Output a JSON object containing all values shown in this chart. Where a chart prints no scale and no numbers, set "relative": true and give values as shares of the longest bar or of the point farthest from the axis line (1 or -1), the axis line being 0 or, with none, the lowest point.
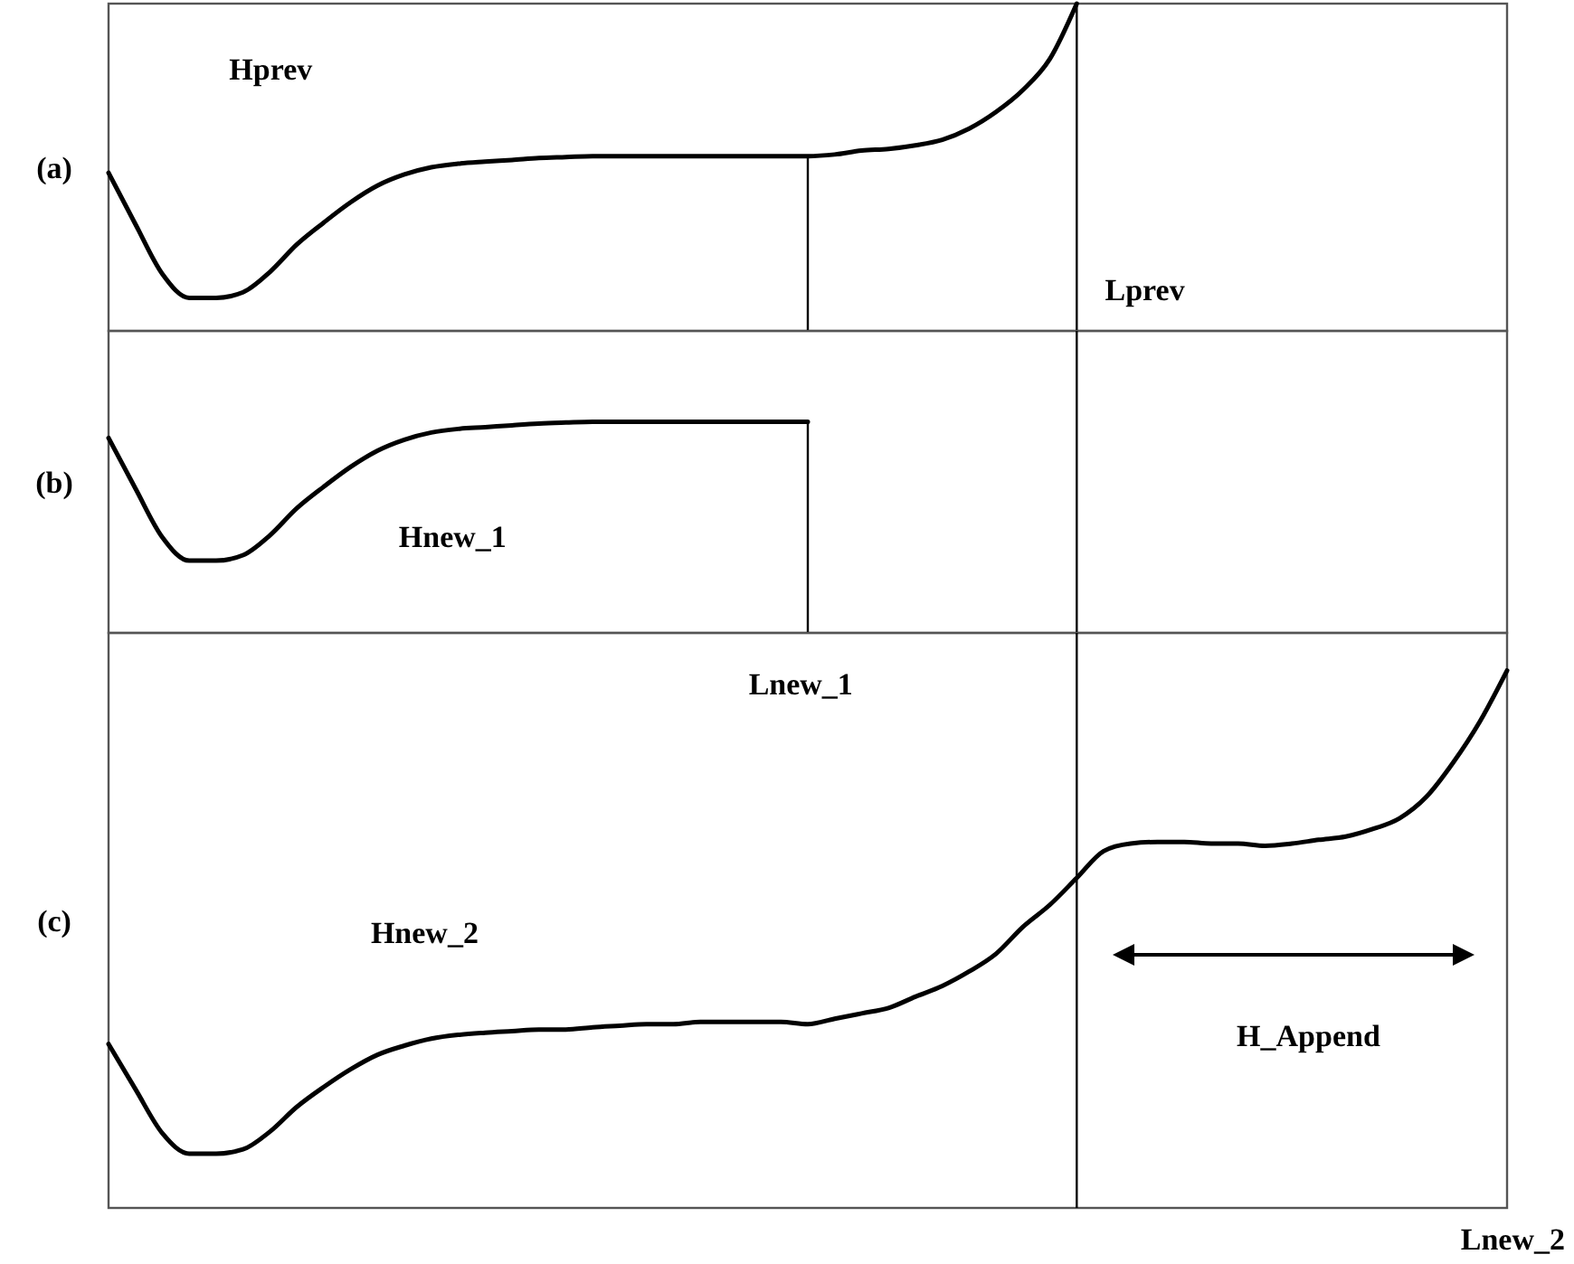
{
  "chart_data": [
    {
      "type": "line",
      "title": "(a)",
      "relative": true,
      "marker": "none",
      "line_style": "solid",
      "categories": [
        null,
        null,
        null,
        null,
        null,
        null,
        null,
        null,
        null,
        null,
        null,
        null,
        null,
        null,
        null,
        null,
        null,
        null,
        null,
        null,
        null,
        null,
        null,
        null,
        null,
        null,
        null,
        null,
        null,
        null,
        null,
        null,
        null,
        null,
        null,
        null,
        null,
        null,
        null,
        null,
        null,
        null,
        null,
        null,
        null,
        null,
        null,
        null,
        null,
        null,
        null,
        null,
        null
      ],
      "series": [
        {
          "color": "#000000",
          "values": [
            0.483,
            0.326,
            0.174,
            0.101,
            0.101,
            0.118,
            0.18,
            0.264,
            0.331,
            0.393,
            0.444,
            0.478,
            0.5,
            0.511,
            0.517,
            0.522,
            0.528,
            0.531,
            0.534,
            0.534,
            0.534,
            0.534,
            0.534,
            0.534,
            0.534,
            0.534,
            0.534,
            0.539,
            0.551,
            0.556,
            0.567,
            0.584,
            0.618,
            0.669,
            0.736,
            0.831,
            1,
            null,
            null,
            null,
            null,
            null,
            null,
            null,
            null,
            null,
            null,
            null,
            null,
            null,
            null,
            null,
            null
          ]
        }
      ],
      "annotations": [
        "Hprev",
        "Lprev"
      ]
    },
    {
      "type": "line",
      "title": "(b)",
      "relative": true,
      "marker": "none",
      "line_style": "solid",
      "categories": [
        null,
        null,
        null,
        null,
        null,
        null,
        null,
        null,
        null,
        null,
        null,
        null,
        null,
        null,
        null,
        null,
        null,
        null,
        null,
        null,
        null,
        null,
        null,
        null,
        null,
        null,
        null,
        null,
        null,
        null,
        null,
        null,
        null,
        null,
        null,
        null,
        null,
        null,
        null,
        null,
        null,
        null,
        null,
        null,
        null,
        null,
        null,
        null,
        null,
        null,
        null,
        null,
        null
      ],
      "series": [
        {
          "color": "#000000",
          "values": [
            0.923,
            0.684,
            0.453,
            0.342,
            0.342,
            0.368,
            0.462,
            0.59,
            0.692,
            0.786,
            0.863,
            0.915,
            0.949,
            0.966,
            0.974,
            0.983,
            0.991,
            0.996,
            1,
            1,
            1,
            1,
            1,
            1,
            1,
            1,
            1,
            null,
            null,
            null,
            null,
            null,
            null,
            null,
            null,
            null,
            null,
            null,
            null,
            null,
            null,
            null,
            null,
            null,
            null,
            null,
            null,
            null,
            null,
            null,
            null,
            null,
            null
          ]
        }
      ],
      "annotations": [
        "Hnew_1",
        "Lnew_1"
      ]
    },
    {
      "type": "line",
      "title": "(c)",
      "xlabel": "Lnew_2",
      "relative": true,
      "marker": "none",
      "line_style": "solid",
      "categories": [
        null,
        null,
        null,
        null,
        null,
        null,
        null,
        null,
        null,
        null,
        null,
        null,
        null,
        null,
        null,
        null,
        null,
        null,
        null,
        null,
        null,
        null,
        null,
        null,
        null,
        null,
        null,
        null,
        null,
        null,
        null,
        null,
        null,
        null,
        null,
        null,
        null,
        null,
        null,
        null,
        null,
        null,
        null,
        null,
        null,
        null,
        null,
        null,
        null,
        null,
        null,
        null,
        null
      ],
      "series": [
        {
          "color": "#000000",
          "values": [
            0.305,
            0.221,
            0.139,
            0.101,
            0.101,
            0.109,
            0.142,
            0.188,
            0.225,
            0.258,
            0.285,
            0.302,
            0.315,
            0.322,
            0.326,
            0.329,
            0.332,
            0.332,
            0.336,
            0.339,
            0.342,
            0.342,
            0.346,
            0.346,
            0.346,
            0.346,
            0.342,
            0.352,
            0.362,
            0.372,
            0.393,
            0.413,
            0.44,
            0.473,
            0.523,
            0.564,
            0.614,
            0.664,
            0.678,
            0.681,
            0.681,
            0.678,
            0.678,
            0.674,
            0.678,
            0.685,
            0.691,
            0.705,
            0.725,
            0.765,
            0.829,
            0.906,
            1
          ]
        }
      ],
      "annotations": [
        "Hnew_2",
        "H_Append"
      ]
    }
  ]
}
